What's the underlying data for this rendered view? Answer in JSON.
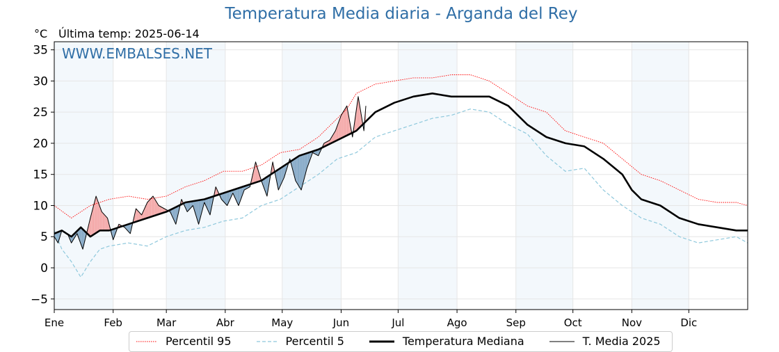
{
  "header": {
    "title": "Temperatura Media diaria - Arganda del Rey",
    "unit": "°C",
    "last_temp": "Última temp: 2025-06-14"
  },
  "watermark": "WWW.EMBALSES.NET",
  "colors": {
    "title": "#2f6ea6",
    "p95": "#ff0000",
    "p5": "#8ec8dc",
    "median": "#000000",
    "current": "#000000",
    "above_fill": "#f4aaaa",
    "below_fill": "#88abc8",
    "shade_band": "#f3f8fc"
  },
  "legend": {
    "p95": "Percentil 95",
    "p5": "Percentil 5",
    "median": "Temperatura Mediana",
    "current": "T. Media 2025"
  },
  "chart_data": {
    "type": "line",
    "title": "Temperatura Media diaria - Arganda del Rey",
    "ylabel": "°C",
    "ylim": [
      -6.7,
      36.3
    ],
    "yticks": [
      -5,
      0,
      5,
      10,
      15,
      20,
      25,
      30,
      35
    ],
    "x_domain_days": [
      1,
      366
    ],
    "month_ticks": [
      {
        "label": "Ene",
        "day": 1
      },
      {
        "label": "Feb",
        "day": 32
      },
      {
        "label": "Mar",
        "day": 60
      },
      {
        "label": "Abr",
        "day": 91
      },
      {
        "label": "May",
        "day": 121
      },
      {
        "label": "Jun",
        "day": 152
      },
      {
        "label": "Jul",
        "day": 182
      },
      {
        "label": "Ago",
        "day": 213
      },
      {
        "label": "Sep",
        "day": 244
      },
      {
        "label": "Oct",
        "day": 274
      },
      {
        "label": "Nov",
        "day": 305
      },
      {
        "label": "Dic",
        "day": 335
      }
    ],
    "grid": true,
    "legend_position": "bottom",
    "series": [
      {
        "name": "Percentil 95",
        "style": "dotted",
        "x": [
          1,
          10,
          20,
          30,
          40,
          50,
          60,
          70,
          80,
          90,
          100,
          110,
          120,
          130,
          140,
          150,
          155,
          160,
          170,
          180,
          190,
          200,
          210,
          220,
          230,
          240,
          250,
          260,
          270,
          280,
          290,
          300,
          310,
          320,
          330,
          340,
          350,
          360,
          366
        ],
        "y": [
          10,
          8,
          10,
          11,
          11.5,
          11,
          11.5,
          13,
          14,
          15.5,
          15.5,
          16.5,
          18.5,
          19,
          21,
          24,
          25.5,
          28,
          29.5,
          30,
          30.5,
          30.5,
          31,
          31,
          30,
          28,
          26,
          25,
          22,
          21,
          20,
          17.5,
          15,
          14,
          12.5,
          11,
          10.5,
          10.5,
          10
        ]
      },
      {
        "name": "Percentil 5",
        "style": "dashed",
        "x": [
          1,
          5,
          10,
          15,
          20,
          25,
          30,
          40,
          50,
          60,
          70,
          80,
          90,
          100,
          110,
          120,
          130,
          140,
          150,
          160,
          170,
          180,
          190,
          200,
          210,
          220,
          230,
          240,
          250,
          260,
          270,
          280,
          290,
          300,
          310,
          320,
          330,
          340,
          350,
          360,
          366
        ],
        "y": [
          6,
          3,
          1,
          -1.5,
          1,
          3,
          3.5,
          4,
          3.5,
          5,
          6,
          6.5,
          7.5,
          8,
          10,
          11,
          13,
          15,
          17.5,
          18.5,
          21,
          22,
          23,
          24,
          24.5,
          25.5,
          25,
          23,
          21.5,
          18,
          15.5,
          16,
          12.5,
          10,
          8,
          7,
          5,
          4,
          4.5,
          5,
          4
        ]
      },
      {
        "name": "Temperatura Mediana",
        "style": "solid-thick",
        "x": [
          1,
          5,
          10,
          15,
          20,
          25,
          30,
          40,
          50,
          60,
          70,
          80,
          90,
          100,
          110,
          120,
          130,
          140,
          150,
          160,
          170,
          180,
          190,
          200,
          210,
          220,
          230,
          240,
          245,
          250,
          260,
          270,
          280,
          290,
          300,
          305,
          310,
          320,
          330,
          340,
          350,
          360,
          366
        ],
        "y": [
          5.5,
          6,
          5,
          6.5,
          5,
          6,
          6,
          7,
          8,
          9,
          10.5,
          11,
          12,
          13,
          14,
          16,
          18,
          19,
          20.5,
          22,
          25,
          26.5,
          27.5,
          28,
          27.5,
          27.5,
          27.5,
          26,
          24.5,
          23,
          21,
          20,
          19.5,
          17.5,
          15,
          12.5,
          11,
          10,
          8,
          7,
          6.5,
          6,
          6
        ]
      },
      {
        "name": "T. Media 2025",
        "style": "solid-thin",
        "x": [
          1,
          3,
          5,
          8,
          10,
          13,
          16,
          20,
          23,
          26,
          29,
          32,
          35,
          38,
          41,
          44,
          47,
          50,
          53,
          56,
          59,
          62,
          65,
          68,
          71,
          74,
          77,
          80,
          83,
          86,
          89,
          92,
          95,
          98,
          101,
          104,
          107,
          110,
          113,
          116,
          119,
          122,
          125,
          128,
          131,
          134,
          137,
          140,
          143,
          146,
          149,
          152,
          155,
          158,
          161,
          164,
          165
        ],
        "y": [
          5,
          4,
          6,
          5.5,
          4,
          5.5,
          3,
          8,
          11.5,
          9,
          8,
          4.5,
          7,
          6.5,
          5.5,
          9.5,
          8.5,
          10.5,
          11.5,
          10,
          9.5,
          9,
          7,
          11,
          9,
          10,
          7,
          10.5,
          8.5,
          13,
          11,
          10,
          12,
          10,
          12.5,
          13,
          17,
          14,
          11.5,
          17,
          12.5,
          14.5,
          17.5,
          14,
          12.5,
          16,
          18.5,
          18,
          20,
          20.5,
          22,
          24.5,
          26,
          21,
          27.5,
          22,
          26
        ]
      }
    ]
  }
}
